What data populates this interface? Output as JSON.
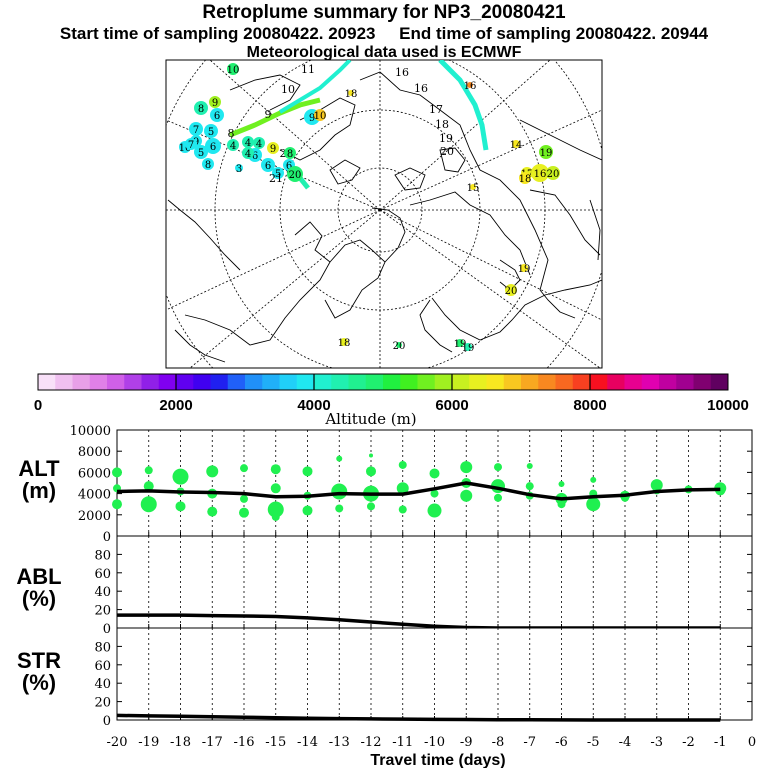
{
  "header": {
    "title": "Retroplume summary for NP3_20080421",
    "start_label": "Start time of sampling 20080422. 20923",
    "end_label": "End time of sampling 20080422. 20944",
    "met_label": "Meteorological data used is ECMWF"
  },
  "colorbar": {
    "title": "Altitude (m)",
    "ticks": [
      "0",
      "2000",
      "4000",
      "6000",
      "8000",
      "10000"
    ],
    "colors": [
      "#f8e0f8",
      "#f0c0f0",
      "#e8a0e8",
      "#e080e8",
      "#d060e8",
      "#b040e8",
      "#9020e8",
      "#8000f0",
      "#6000f0",
      "#4000f0",
      "#2020f0",
      "#2060f8",
      "#2090f8",
      "#20b0f8",
      "#20d0f8",
      "#20e8f0",
      "#20f0d0",
      "#20f0b0",
      "#20f090",
      "#20f070",
      "#20f040",
      "#40f020",
      "#70f020",
      "#a0f020",
      "#c8f020",
      "#e8f020",
      "#f8e820",
      "#f8c820",
      "#f8a820",
      "#f88820",
      "#f86820",
      "#f84020",
      "#f81020",
      "#e80060",
      "#e80090",
      "#e000b0",
      "#c000a0",
      "#a00090",
      "#800070",
      "#600060"
    ]
  },
  "map": {
    "markers": [
      {
        "label": "10",
        "c": "#20f070"
      },
      {
        "label": "11",
        "c": "#ffffff"
      },
      {
        "label": "10",
        "c": "#ffffff"
      },
      {
        "label": "9",
        "c": "#a0f020"
      },
      {
        "label": "8",
        "c": "#20f0b0"
      },
      {
        "label": "6",
        "c": "#20e8f0"
      },
      {
        "label": "7",
        "c": "#20e8f0"
      },
      {
        "label": "5",
        "c": "#20e8f0"
      },
      {
        "label": "9",
        "c": "#20e8f0"
      },
      {
        "label": "10",
        "c": "#20e8f0"
      },
      {
        "label": "8",
        "c": "#ffffff"
      },
      {
        "label": "6",
        "c": "#20e8f0"
      },
      {
        "label": "7",
        "c": "#20e8f0"
      },
      {
        "label": "5",
        "c": "#20e8f0"
      },
      {
        "label": "8",
        "c": "#20e8f0"
      },
      {
        "label": "4",
        "c": "#20f0b0"
      },
      {
        "label": "4",
        "c": "#20f0b0"
      },
      {
        "label": "4",
        "c": "#20f0b0"
      },
      {
        "label": "9",
        "c": "#ffffff"
      },
      {
        "label": "9",
        "c": "#20e8f0"
      },
      {
        "label": "9",
        "c": "#e8f020"
      },
      {
        "label": "10",
        "c": "#f8c820"
      },
      {
        "label": "6",
        "c": "#20e8f0"
      },
      {
        "label": "3",
        "c": "#20e8f0"
      },
      {
        "label": "4",
        "c": "#20f0b0"
      },
      {
        "label": "2",
        "c": "#ffffff"
      },
      {
        "label": "8",
        "c": "#20f070"
      },
      {
        "label": "6",
        "c": "#20e8f0"
      },
      {
        "label": "6",
        "c": "#20e8f0"
      },
      {
        "label": "5",
        "c": "#20e8f0"
      },
      {
        "label": "21",
        "c": "#ffffff"
      },
      {
        "label": "20",
        "c": "#20f070"
      },
      {
        "label": "16",
        "c": "#ffffff"
      },
      {
        "label": "16",
        "c": "#ffffff"
      },
      {
        "label": "17",
        "c": "#ffffff"
      },
      {
        "label": "18",
        "c": "#ffffff"
      },
      {
        "label": "19",
        "c": "#ffffff"
      },
      {
        "label": "20",
        "c": "#ffffff"
      },
      {
        "label": "14",
        "c": "#f8e820"
      },
      {
        "label": "19",
        "c": "#70f020"
      },
      {
        "label": "17",
        "c": "#e8f020"
      },
      {
        "label": "16",
        "c": "#e8f020"
      },
      {
        "label": "20",
        "c": "#c8f020"
      },
      {
        "label": "19",
        "c": "#f8e820"
      },
      {
        "label": "18",
        "c": "#f8e820"
      },
      {
        "label": "15",
        "c": "#f8e820"
      },
      {
        "label": "20",
        "c": "#e8f020"
      },
      {
        "label": "19",
        "c": "#20f070"
      },
      {
        "label": "19",
        "c": "#20f0b0"
      },
      {
        "label": "20",
        "c": "#20f070"
      },
      {
        "label": "18",
        "c": "#e8f020"
      },
      {
        "label": "16",
        "c": "#f88820"
      },
      {
        "label": "18",
        "c": "#f8e820"
      }
    ]
  },
  "chart_data": {
    "type": "line",
    "xlabel": "Travel time (days)",
    "x_ticks": [
      "-20",
      "-19",
      "-18",
      "-17",
      "-16",
      "-15",
      "-14",
      "-13",
      "-12",
      "-11",
      "-10",
      "-9",
      "-8",
      "-7",
      "-6",
      "-5",
      "-4",
      "-3",
      "-2",
      "-1",
      "0"
    ],
    "x": [
      -20,
      -19,
      -18,
      -17,
      -16,
      -15,
      -14,
      -13,
      -12,
      -11,
      -10,
      -9,
      -8,
      -7,
      -6,
      -5,
      -4,
      -3,
      -2,
      -1
    ],
    "xlim": [
      -20,
      0
    ],
    "panels": [
      {
        "name": "ALT",
        "ylabel_line1": "ALT",
        "ylabel_line2": "(m)",
        "ylim": [
          0,
          10000
        ],
        "y_ticks": [
          "0",
          "2000",
          "4000",
          "6000",
          "8000",
          "10000"
        ],
        "y_tick_values": [
          0,
          2000,
          4000,
          6000,
          8000,
          10000
        ],
        "mean_line": [
          4200,
          4250,
          4150,
          4100,
          4000,
          3700,
          3750,
          4000,
          3950,
          3950,
          4450,
          5000,
          4500,
          3900,
          3500,
          3700,
          3850,
          4200,
          4350,
          4400
        ],
        "scatter_points": [
          {
            "x": -20,
            "y": 6000,
            "s": 5
          },
          {
            "x": -20,
            "y": 4500,
            "s": 4
          },
          {
            "x": -20,
            "y": 3000,
            "s": 5
          },
          {
            "x": -19,
            "y": 6200,
            "s": 4
          },
          {
            "x": -19,
            "y": 4700,
            "s": 5
          },
          {
            "x": -19,
            "y": 3000,
            "s": 8
          },
          {
            "x": -18,
            "y": 5600,
            "s": 8
          },
          {
            "x": -18,
            "y": 4200,
            "s": 4
          },
          {
            "x": -18,
            "y": 2800,
            "s": 5
          },
          {
            "x": -17,
            "y": 6100,
            "s": 6
          },
          {
            "x": -17,
            "y": 4000,
            "s": 5
          },
          {
            "x": -17,
            "y": 2300,
            "s": 5
          },
          {
            "x": -16,
            "y": 6400,
            "s": 4
          },
          {
            "x": -16,
            "y": 3500,
            "s": 4
          },
          {
            "x": -16,
            "y": 2200,
            "s": 5
          },
          {
            "x": -15,
            "y": 6300,
            "s": 5
          },
          {
            "x": -15,
            "y": 4500,
            "s": 5
          },
          {
            "x": -15,
            "y": 2500,
            "s": 8
          },
          {
            "x": -15,
            "y": 1800,
            "s": 4
          },
          {
            "x": -14,
            "y": 6100,
            "s": 5
          },
          {
            "x": -14,
            "y": 3800,
            "s": 4
          },
          {
            "x": -14,
            "y": 2400,
            "s": 5
          },
          {
            "x": -13,
            "y": 7300,
            "s": 3
          },
          {
            "x": -13,
            "y": 4200,
            "s": 8
          },
          {
            "x": -13,
            "y": 2600,
            "s": 4
          },
          {
            "x": -12,
            "y": 7600,
            "s": 2
          },
          {
            "x": -12,
            "y": 6100,
            "s": 5
          },
          {
            "x": -12,
            "y": 4000,
            "s": 8
          },
          {
            "x": -12,
            "y": 2800,
            "s": 4
          },
          {
            "x": -11,
            "y": 6700,
            "s": 4
          },
          {
            "x": -11,
            "y": 4500,
            "s": 6
          },
          {
            "x": -11,
            "y": 2500,
            "s": 4
          },
          {
            "x": -10,
            "y": 5900,
            "s": 5
          },
          {
            "x": -10,
            "y": 4000,
            "s": 4
          },
          {
            "x": -10,
            "y": 2400,
            "s": 7
          },
          {
            "x": -9,
            "y": 6500,
            "s": 6
          },
          {
            "x": -9,
            "y": 5000,
            "s": 5
          },
          {
            "x": -9,
            "y": 3800,
            "s": 6
          },
          {
            "x": -8,
            "y": 6500,
            "s": 4
          },
          {
            "x": -8,
            "y": 4700,
            "s": 7
          },
          {
            "x": -8,
            "y": 3600,
            "s": 4
          },
          {
            "x": -7,
            "y": 6600,
            "s": 3
          },
          {
            "x": -7,
            "y": 4700,
            "s": 4
          },
          {
            "x": -7,
            "y": 3800,
            "s": 4
          },
          {
            "x": -6,
            "y": 4900,
            "s": 3
          },
          {
            "x": -6,
            "y": 3500,
            "s": 6
          },
          {
            "x": -6,
            "y": 3000,
            "s": 4
          },
          {
            "x": -5,
            "y": 5300,
            "s": 3
          },
          {
            "x": -5,
            "y": 4000,
            "s": 4
          },
          {
            "x": -5,
            "y": 3000,
            "s": 7
          },
          {
            "x": -4,
            "y": 3800,
            "s": 5
          },
          {
            "x": -4,
            "y": 3600,
            "s": 4
          },
          {
            "x": -3,
            "y": 4800,
            "s": 6
          },
          {
            "x": -3,
            "y": 4300,
            "s": 4
          },
          {
            "x": -2,
            "y": 4400,
            "s": 4
          },
          {
            "x": -1,
            "y": 4500,
            "s": 6
          },
          {
            "x": -1,
            "y": 4300,
            "s": 5
          }
        ]
      },
      {
        "name": "ABL",
        "ylabel_line1": "ABL",
        "ylabel_line2": "(%)",
        "ylim": [
          0,
          100
        ],
        "y_ticks": [
          "0",
          "20",
          "40",
          "60",
          "80"
        ],
        "y_tick_values": [
          0,
          20,
          40,
          60,
          80
        ],
        "mean_line": [
          14,
          14,
          14,
          13.5,
          13,
          12.5,
          11,
          9,
          6.5,
          4,
          2,
          0.5,
          0,
          0,
          0,
          0,
          0,
          0,
          0,
          0
        ]
      },
      {
        "name": "STR",
        "ylabel_line1": "STR",
        "ylabel_line2": "(%)",
        "ylim": [
          0,
          100
        ],
        "y_ticks": [
          "0",
          "20",
          "40",
          "60",
          "80"
        ],
        "y_tick_values": [
          0,
          20,
          40,
          60,
          80
        ],
        "mean_line": [
          5,
          4.5,
          4,
          3.5,
          3,
          2.5,
          2,
          1.5,
          1.2,
          1,
          0.7,
          0.5,
          0.3,
          0.2,
          0.1,
          0,
          0,
          0,
          0,
          0
        ]
      }
    ]
  }
}
